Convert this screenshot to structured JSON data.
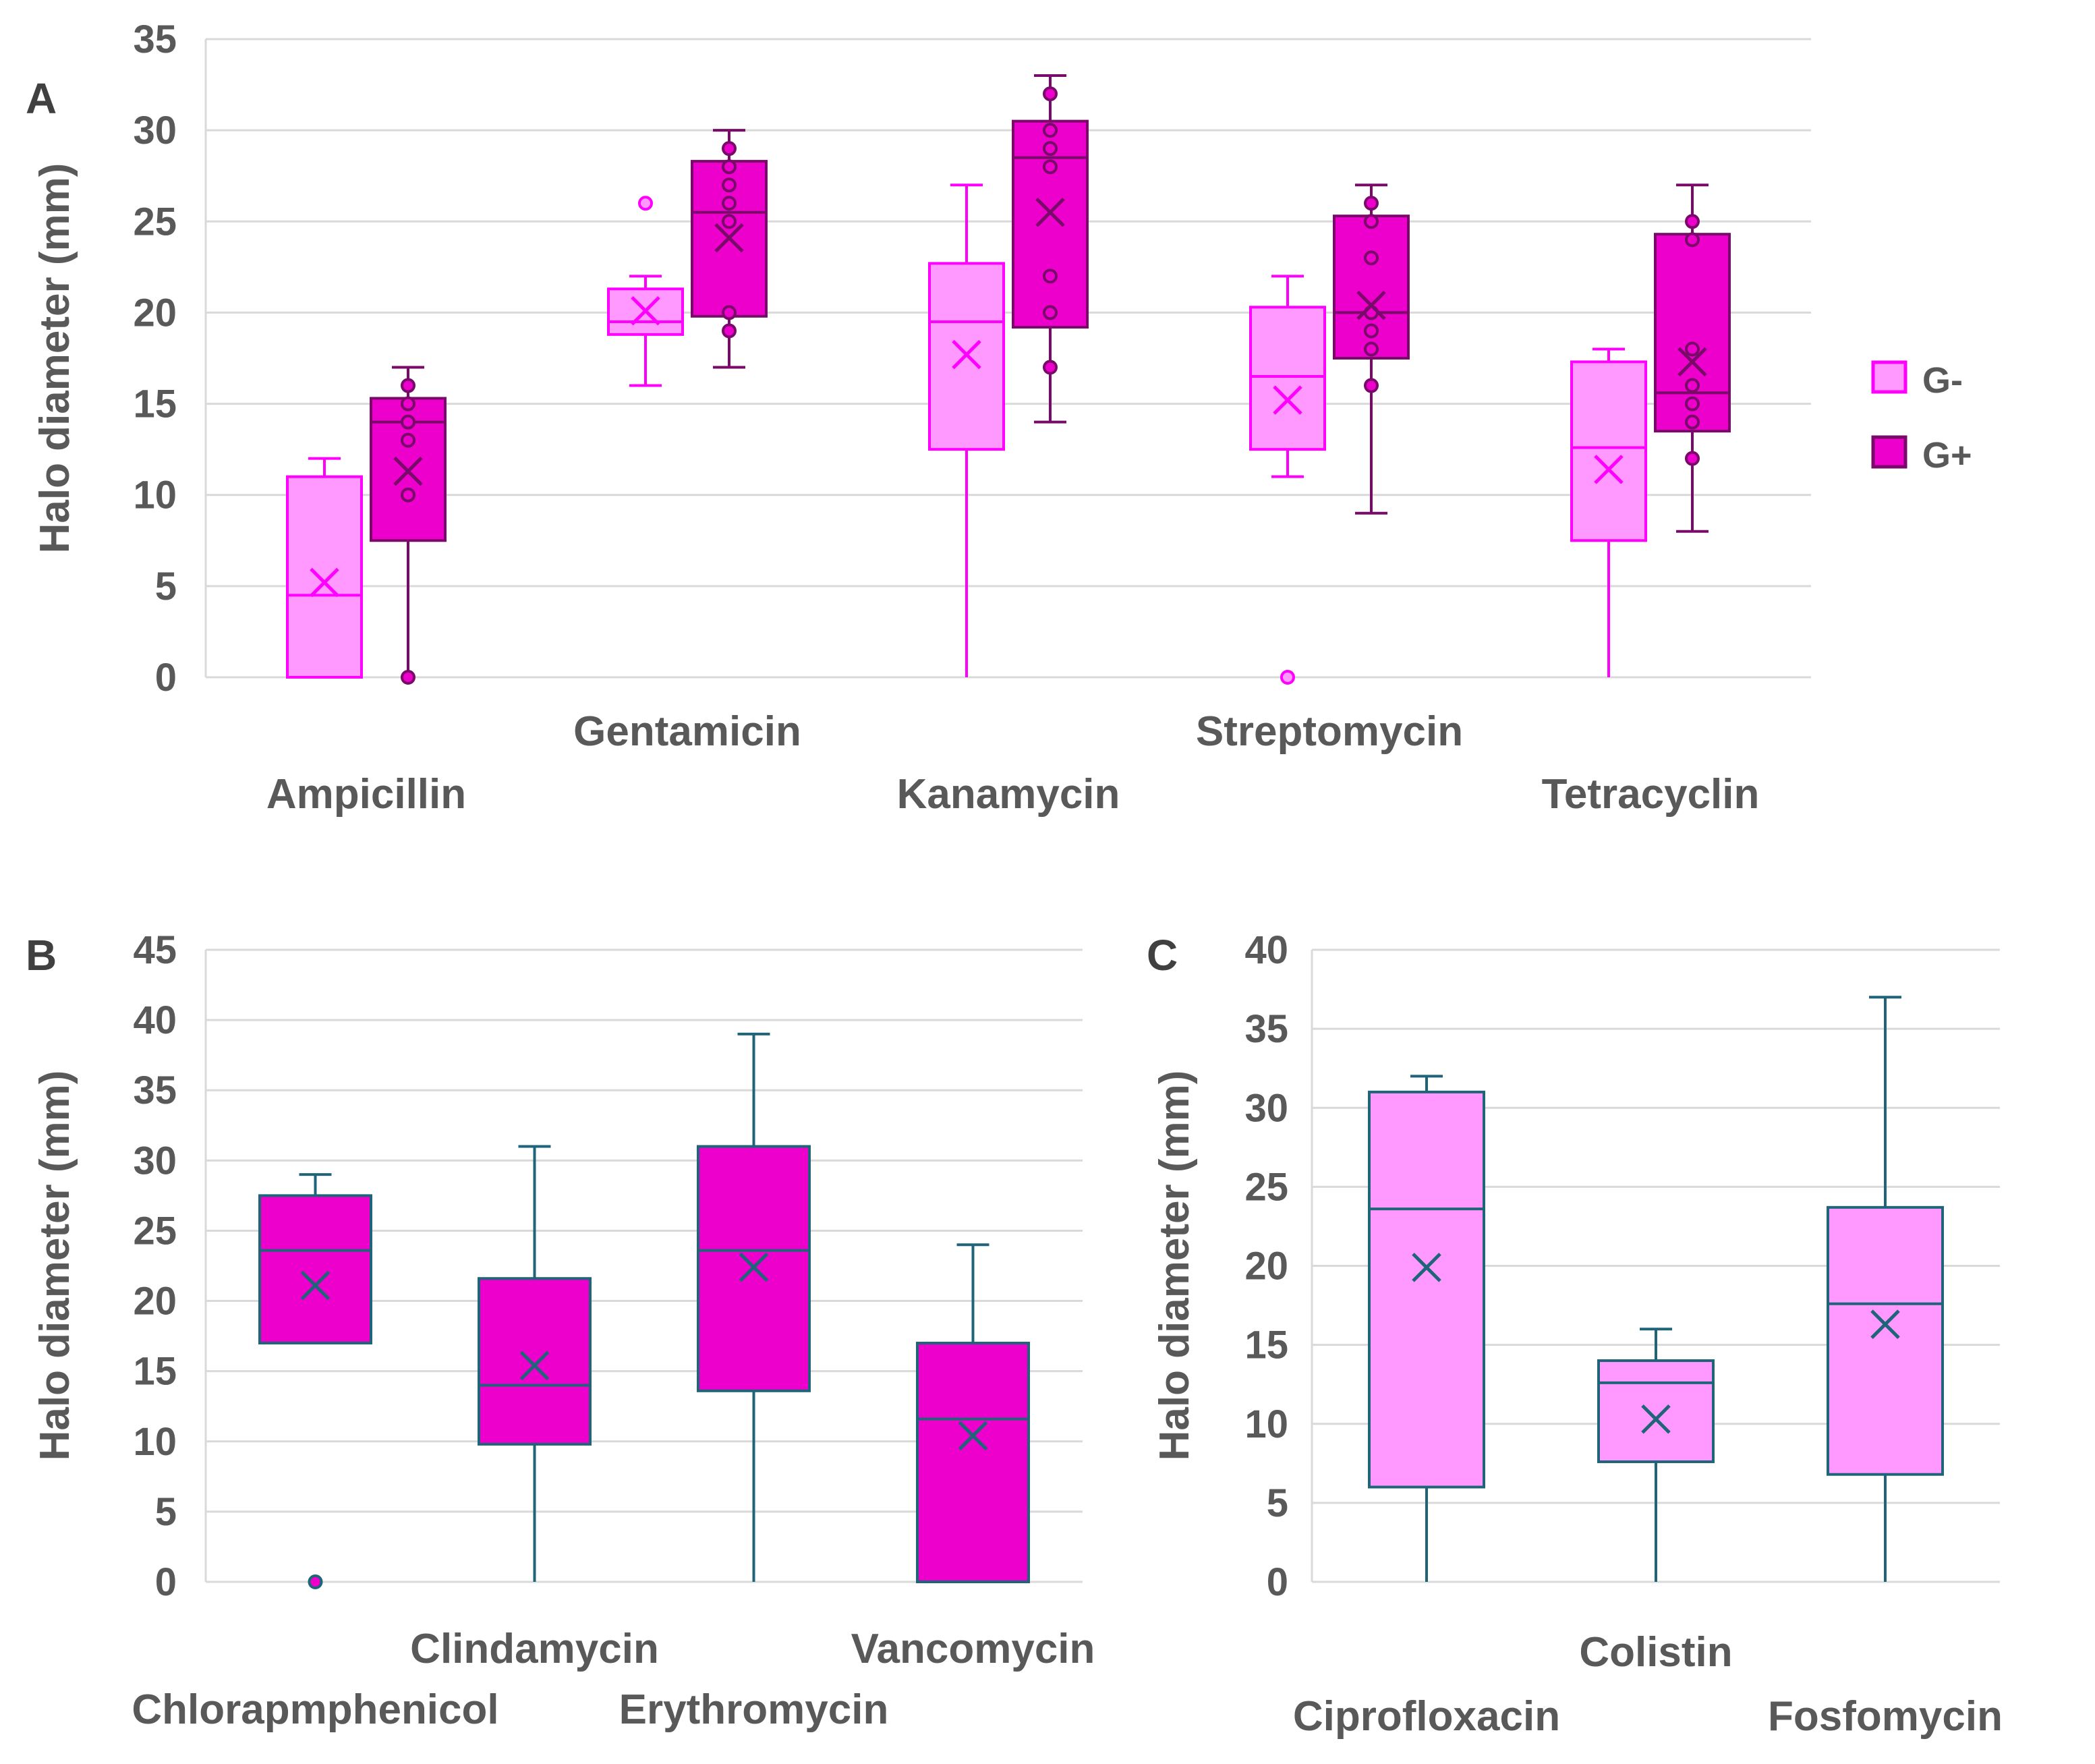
{
  "colors": {
    "g_minus_fill": "#FF99FF",
    "g_minus_stroke": "#FF00FF",
    "g_plus_fill": "#EE00CC",
    "g_plus_stroke": "#7A0A6A",
    "single_stroke": "#1F6478",
    "grid": "#D9D9D9",
    "text": "#595959"
  },
  "chart_data": [
    {
      "type": "box",
      "panel_label": "A",
      "ylabel": "Halo diameter (mm)",
      "ylim": [
        0,
        35
      ],
      "yticks": [
        0,
        5,
        10,
        15,
        20,
        25,
        30,
        35
      ],
      "grid": true,
      "legend": {
        "placement": "right",
        "entries": [
          "G-",
          "G+"
        ]
      },
      "categories": [
        "Ampicillin",
        "Gentamicin",
        "Kanamycin",
        "Streptomycin",
        "Tetracyclin"
      ],
      "series": [
        {
          "name": "G-",
          "boxes": [
            {
              "min": 0,
              "q1": 0,
              "median": 4.5,
              "q3": 11,
              "max": 12,
              "mean": 5.2,
              "outliers": []
            },
            {
              "min": 16,
              "q1": 18.8,
              "median": 19.5,
              "q3": 21.3,
              "max": 22,
              "mean": 20.1,
              "outliers": [
                26
              ]
            },
            {
              "min": 0,
              "q1": 12.5,
              "median": 19.5,
              "q3": 22.7,
              "max": 27,
              "mean": 17.7,
              "outliers": []
            },
            {
              "min": 11,
              "q1": 12.5,
              "median": 16.5,
              "q3": 20.3,
              "max": 22,
              "mean": 15.2,
              "outliers": [
                0
              ]
            },
            {
              "min": 0,
              "q1": 7.5,
              "median": 12.6,
              "q3": 17.3,
              "max": 18,
              "mean": 11.4,
              "outliers": []
            }
          ]
        },
        {
          "name": "G+",
          "boxes": [
            {
              "min": 0,
              "q1": 7.5,
              "median": 14,
              "q3": 15.3,
              "max": 17,
              "mean": 11.3,
              "points": [
                16,
                15,
                14,
                13,
                10
              ],
              "outliers": [
                0
              ]
            },
            {
              "min": 17,
              "q1": 19.8,
              "median": 25.5,
              "q3": 28.3,
              "max": 30,
              "mean": 24.1,
              "points": [
                29,
                28,
                27,
                26,
                25,
                20,
                19
              ],
              "outliers": []
            },
            {
              "min": 14,
              "q1": 19.2,
              "median": 28.5,
              "q3": 30.5,
              "max": 33,
              "mean": 25.5,
              "points": [
                32,
                30,
                29,
                28,
                22,
                20,
                17
              ],
              "outliers": []
            },
            {
              "min": 9,
              "q1": 17.5,
              "median": 20,
              "q3": 25.3,
              "max": 27,
              "mean": 20.4,
              "points": [
                26,
                25,
                23,
                20,
                19,
                18,
                16
              ],
              "outliers": []
            },
            {
              "min": 8,
              "q1": 13.5,
              "median": 15.6,
              "q3": 24.3,
              "max": 27,
              "mean": 17.3,
              "points": [
                25,
                24,
                18,
                16,
                15,
                14,
                12
              ],
              "outliers": []
            }
          ]
        }
      ]
    },
    {
      "type": "box",
      "panel_label": "B",
      "ylabel": "Halo diameter (mm)",
      "ylim": [
        0,
        45
      ],
      "yticks": [
        0,
        5,
        10,
        15,
        20,
        25,
        30,
        35,
        40,
        45
      ],
      "grid": true,
      "categories": [
        "Chlorapmphenicol",
        "Clindamycin",
        "Erythromycin",
        "Vancomycin"
      ],
      "series": [
        {
          "name": "G+",
          "boxes": [
            {
              "min": 17,
              "q1": 17,
              "median": 23.6,
              "q3": 27.5,
              "max": 29,
              "mean": 21.1,
              "outliers": [
                0
              ]
            },
            {
              "min": 0,
              "q1": 9.8,
              "median": 14,
              "q3": 21.6,
              "max": 31,
              "mean": 15.4,
              "outliers": []
            },
            {
              "min": 0,
              "q1": 13.6,
              "median": 23.6,
              "q3": 31,
              "max": 39,
              "mean": 22.4,
              "outliers": []
            },
            {
              "min": 0,
              "q1": 0,
              "median": 11.6,
              "q3": 17,
              "max": 24,
              "mean": 10.4,
              "outliers": []
            }
          ]
        }
      ]
    },
    {
      "type": "box",
      "panel_label": "C",
      "ylabel": "Halo diameter (mm)",
      "ylim": [
        0,
        40
      ],
      "yticks": [
        0,
        5,
        10,
        15,
        20,
        25,
        30,
        35,
        40
      ],
      "grid": true,
      "categories": [
        "Ciprofloxacin",
        "Colistin",
        "Fosfomycin"
      ],
      "series": [
        {
          "name": "G-",
          "boxes": [
            {
              "min": 0,
              "q1": 6,
              "median": 23.6,
              "q3": 31,
              "max": 32,
              "mean": 19.9,
              "outliers": []
            },
            {
              "min": 0,
              "q1": 7.6,
              "median": 12.6,
              "q3": 14,
              "max": 16,
              "mean": 10.3,
              "outliers": []
            },
            {
              "min": 0,
              "q1": 6.8,
              "median": 17.6,
              "q3": 23.7,
              "max": 37,
              "mean": 16.3,
              "outliers": []
            }
          ]
        }
      ]
    }
  ]
}
